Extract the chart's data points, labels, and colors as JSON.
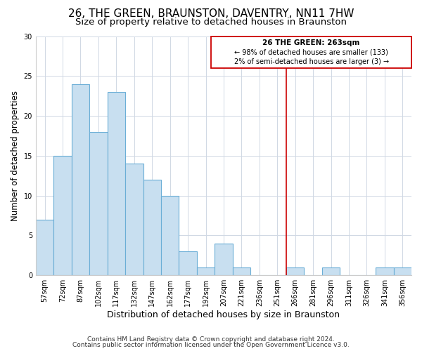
{
  "title": "26, THE GREEN, BRAUNSTON, DAVENTRY, NN11 7HW",
  "subtitle": "Size of property relative to detached houses in Braunston",
  "xlabel": "Distribution of detached houses by size in Braunston",
  "ylabel": "Number of detached properties",
  "bar_labels": [
    "57sqm",
    "72sqm",
    "87sqm",
    "102sqm",
    "117sqm",
    "132sqm",
    "147sqm",
    "162sqm",
    "177sqm",
    "192sqm",
    "207sqm",
    "221sqm",
    "236sqm",
    "251sqm",
    "266sqm",
    "281sqm",
    "296sqm",
    "311sqm",
    "326sqm",
    "341sqm",
    "356sqm"
  ],
  "bar_heights": [
    7,
    15,
    24,
    18,
    23,
    14,
    12,
    10,
    3,
    1,
    4,
    1,
    0,
    0,
    1,
    0,
    1,
    0,
    0,
    1,
    1
  ],
  "bar_color": "#c8dff0",
  "bar_edge_color": "#6baed6",
  "vline_index": 14,
  "vline_color": "#cc0000",
  "annotation_title": "26 THE GREEN: 263sqm",
  "annotation_line1": "← 98% of detached houses are smaller (133)",
  "annotation_line2": "2% of semi-detached houses are larger (3) →",
  "annotation_box_color": "#cc0000",
  "ylim": [
    0,
    30
  ],
  "yticks": [
    0,
    5,
    10,
    15,
    20,
    25,
    30
  ],
  "footer1": "Contains HM Land Registry data © Crown copyright and database right 2024.",
  "footer2": "Contains public sector information licensed under the Open Government Licence v3.0.",
  "title_fontsize": 11,
  "subtitle_fontsize": 9.5,
  "xlabel_fontsize": 9,
  "ylabel_fontsize": 8.5,
  "tick_fontsize": 7,
  "footer_fontsize": 6.5
}
